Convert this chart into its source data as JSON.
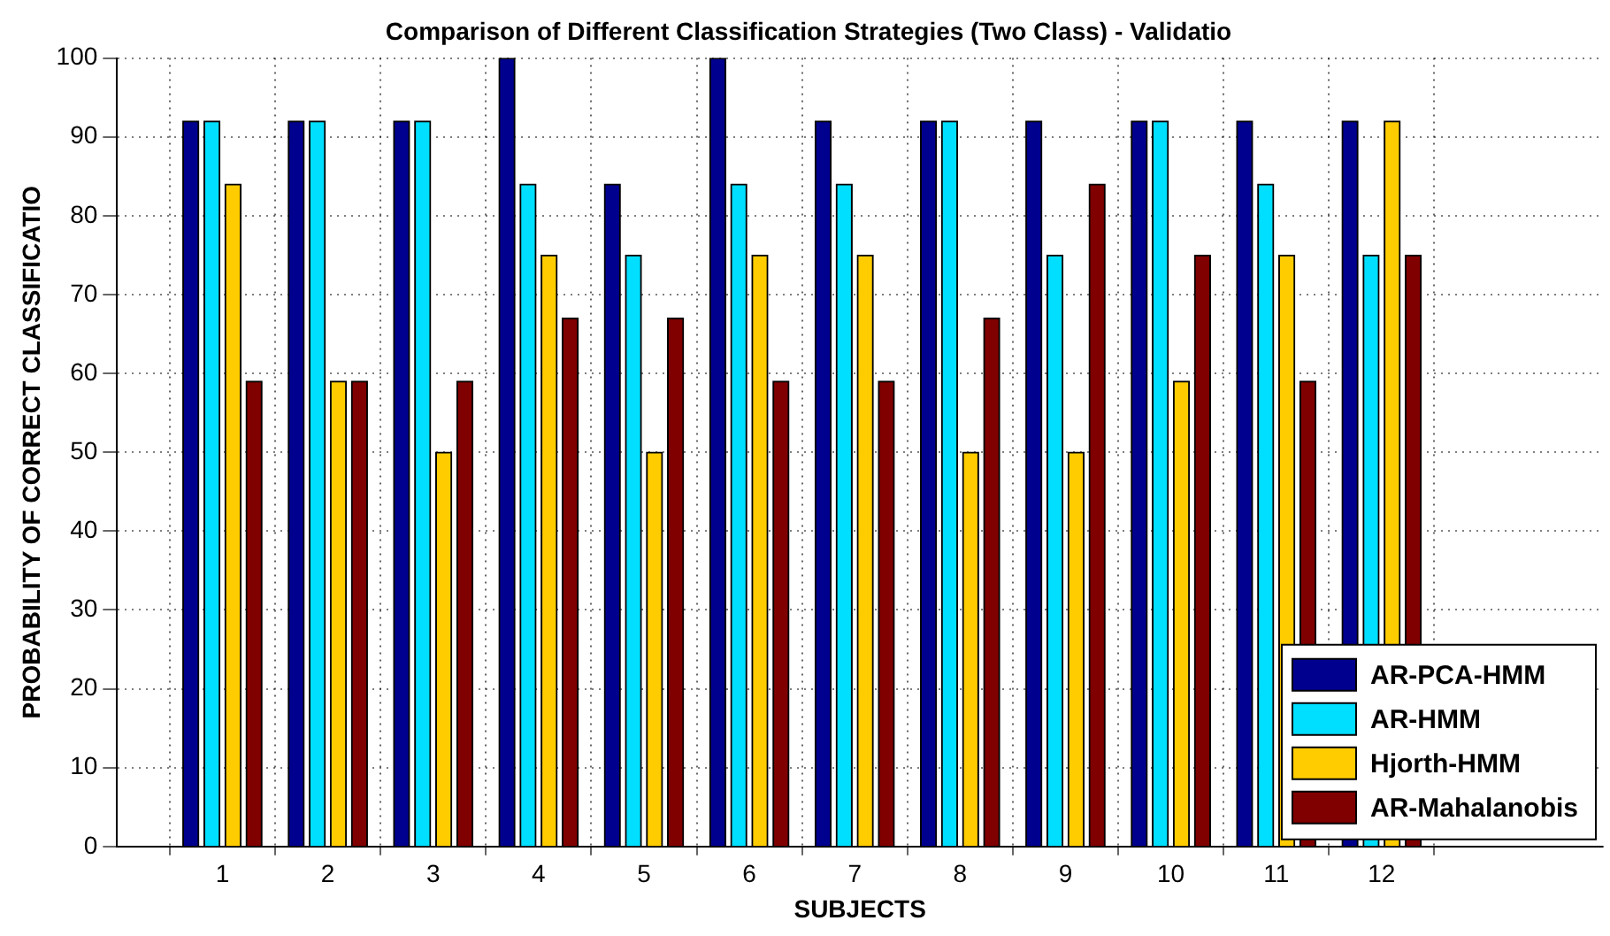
{
  "chart_data": {
    "type": "bar",
    "title": "Comparison of Different Classification Strategies (Two Class) - Validatio",
    "xlabel": "SUBJECTS",
    "ylabel": "PROBABILITY OF CORRECT CLASSIFICATIO",
    "x": [
      1,
      2,
      3,
      4,
      5,
      6,
      7,
      8,
      9,
      10,
      11,
      12
    ],
    "series": [
      {
        "name": "AR-PCA-HMM",
        "color": "#00008f",
        "values": [
          92,
          92,
          92,
          100,
          84,
          100,
          92,
          92,
          92,
          92,
          92,
          92
        ]
      },
      {
        "name": "AR-HMM",
        "color": "#00dfff",
        "values": [
          92,
          92,
          92,
          84,
          75,
          84,
          84,
          92,
          75,
          92,
          84,
          75
        ]
      },
      {
        "name": "Hjorth-HMM",
        "color": "#ffcc00",
        "values": [
          84,
          59,
          50,
          75,
          50,
          75,
          75,
          50,
          50,
          59,
          75,
          92
        ]
      },
      {
        "name": "AR-Mahalanobis",
        "color": "#800000",
        "values": [
          59,
          59,
          59,
          67,
          67,
          59,
          59,
          67,
          84,
          75,
          59,
          75
        ]
      }
    ],
    "xlim": [
      0,
      14.1
    ],
    "xticks": [
      1,
      2,
      3,
      4,
      5,
      6,
      7,
      8,
      9,
      10,
      11,
      12
    ],
    "ylim": [
      0,
      100
    ],
    "yticks": [
      0,
      10,
      20,
      30,
      40,
      50,
      60,
      70,
      80,
      90,
      100
    ],
    "grid": true,
    "legend": "bottom right"
  }
}
